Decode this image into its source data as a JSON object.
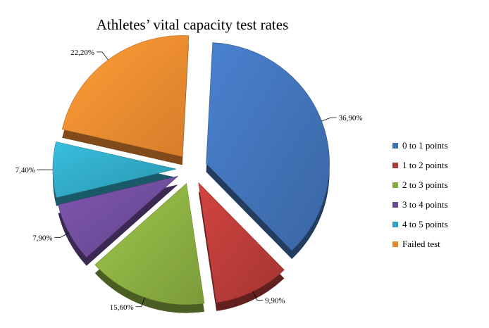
{
  "chart_data": {
    "type": "pie",
    "title": "Athletes’ vital capacity test rates",
    "categories": [
      "0 to 1 points",
      "1 to 2 points",
      "2 to 3 points",
      "3 to 4 points",
      "4 to 5 points",
      "Failed test"
    ],
    "values": [
      36.9,
      9.9,
      15.6,
      7.9,
      7.4,
      22.2
    ],
    "data_labels": [
      "36,90%",
      "9,90%",
      "15,60%",
      "7,90%",
      "7,40%",
      "22,20%"
    ],
    "colors": [
      "#3f6eb0",
      "#b23a36",
      "#86a93f",
      "#6c4a96",
      "#2fa2bd",
      "#e9872f"
    ],
    "exploded": true,
    "legend_position": "right"
  }
}
